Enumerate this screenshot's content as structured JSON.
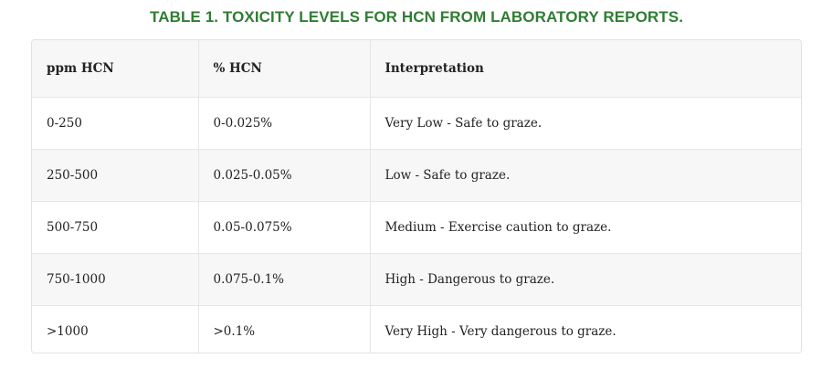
{
  "title": "TABLE 1. TOXICITY LEVELS FOR HCN FROM LABORATORY REPORTS.",
  "table": {
    "headers": [
      "ppm HCN",
      "% HCN",
      "Interpretation"
    ],
    "rows": [
      [
        "0-250",
        "0-0.025%",
        "Very Low - Safe to graze."
      ],
      [
        "250-500",
        "0.025-0.05%",
        "Low - Safe to graze."
      ],
      [
        "500-750",
        "0.05-0.075%",
        "Medium - Exercise caution to graze."
      ],
      [
        "750-1000",
        "0.075-0.1%",
        "High - Dangerous to graze."
      ],
      [
        ">1000",
        ">0.1%",
        "Very High - Very dangerous to graze."
      ]
    ]
  },
  "colors": {
    "title": "#2f7d33",
    "header_bg": "#f7f7f7",
    "stripe_bg": "#f7f7f7",
    "border": "#e6e6e6"
  }
}
